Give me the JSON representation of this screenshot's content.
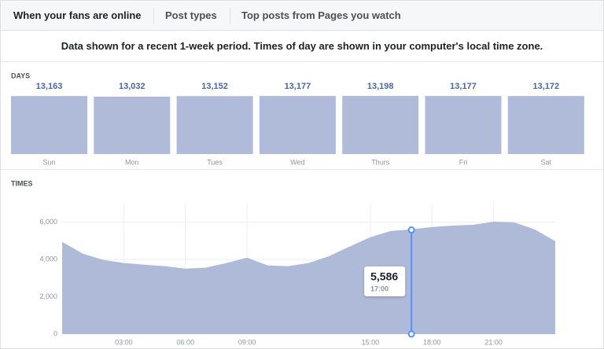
{
  "tabs": [
    "When your fans are online",
    "Post types",
    "Top posts from Pages you watch"
  ],
  "note": "Data shown for a recent 1-week period. Times of day are shown in your computer's local time zone.",
  "chart_data": [
    {
      "type": "bar",
      "title": "DAYS",
      "color": "#afbbd9",
      "categories": [
        "Sun",
        "Mon",
        "Tues",
        "Wed",
        "Thurs",
        "Fri",
        "Sat"
      ],
      "values": [
        13163,
        13032,
        13152,
        13177,
        13198,
        13177,
        13172
      ],
      "value_labels": [
        "13,163",
        "13,032",
        "13,152",
        "13,177",
        "13,198",
        "13,177",
        "13,172"
      ]
    },
    {
      "type": "area",
      "title": "TIMES",
      "color": "#afbad8",
      "x": [
        0,
        1,
        2,
        3,
        4,
        5,
        6,
        7,
        8,
        9,
        10,
        11,
        12,
        13,
        14,
        15,
        16,
        17,
        18,
        19,
        20,
        21,
        22,
        23,
        24
      ],
      "values": [
        4910,
        4280,
        3950,
        3780,
        3690,
        3610,
        3480,
        3530,
        3780,
        4070,
        3650,
        3610,
        3780,
        4150,
        4660,
        5160,
        5500,
        5586,
        5710,
        5790,
        5830,
        6000,
        5960,
        5580,
        4950
      ],
      "xlim": [
        0,
        24
      ],
      "ylim": [
        0,
        7000
      ],
      "xticks": [
        {
          "value": 3,
          "label": "03:00"
        },
        {
          "value": 6,
          "label": "06:00"
        },
        {
          "value": 9,
          "label": "09:00"
        },
        {
          "value": 15,
          "label": "15:00"
        },
        {
          "value": 18,
          "label": "18:00"
        },
        {
          "value": 21,
          "label": "21:00"
        }
      ],
      "yticks": [
        0,
        {
          "value": 2000,
          "label": "2,000"
        },
        {
          "value": 4000,
          "label": "4,000"
        },
        {
          "value": 6000,
          "label": "6,000"
        }
      ],
      "grid": true,
      "tooltip": {
        "x": 17,
        "value": 5586,
        "value_label": "5,586",
        "x_label": "17:00"
      }
    }
  ]
}
